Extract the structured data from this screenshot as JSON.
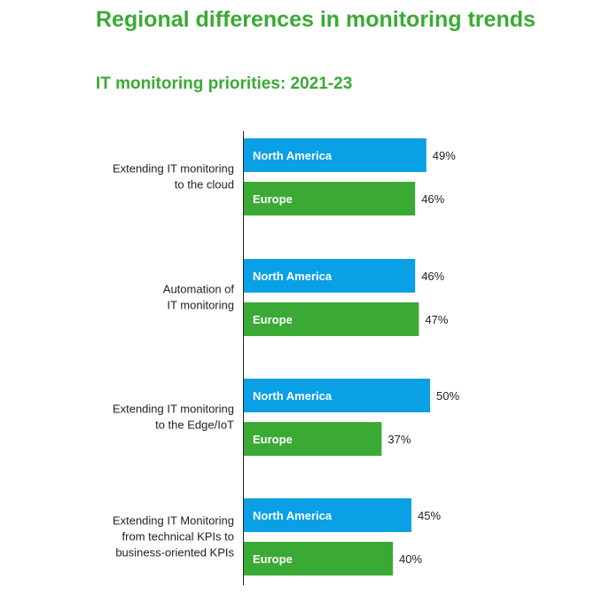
{
  "chart_data": {
    "type": "bar",
    "orientation": "horizontal",
    "title": "Regional differences in monitoring trends",
    "subtitle": "IT monitoring priorities: 2021-23",
    "categories": [
      [
        "Extending IT monitoring",
        "to the cloud"
      ],
      [
        "Automation of",
        "IT monitoring"
      ],
      [
        "Extending IT monitoring",
        "to the Edge/IoT"
      ],
      [
        "Extending IT Monitoring",
        "from technical KPIs to",
        "business-oriented KPIs"
      ]
    ],
    "series": [
      {
        "name": "North America",
        "color": "#0aa0e6",
        "values": [
          49,
          46,
          50,
          45
        ]
      },
      {
        "name": "Europe",
        "color": "#3aaa35",
        "values": [
          46,
          47,
          37,
          40
        ]
      }
    ],
    "value_suffix": "%",
    "xlim": [
      0,
      100
    ],
    "grid": false,
    "legend": "none"
  }
}
